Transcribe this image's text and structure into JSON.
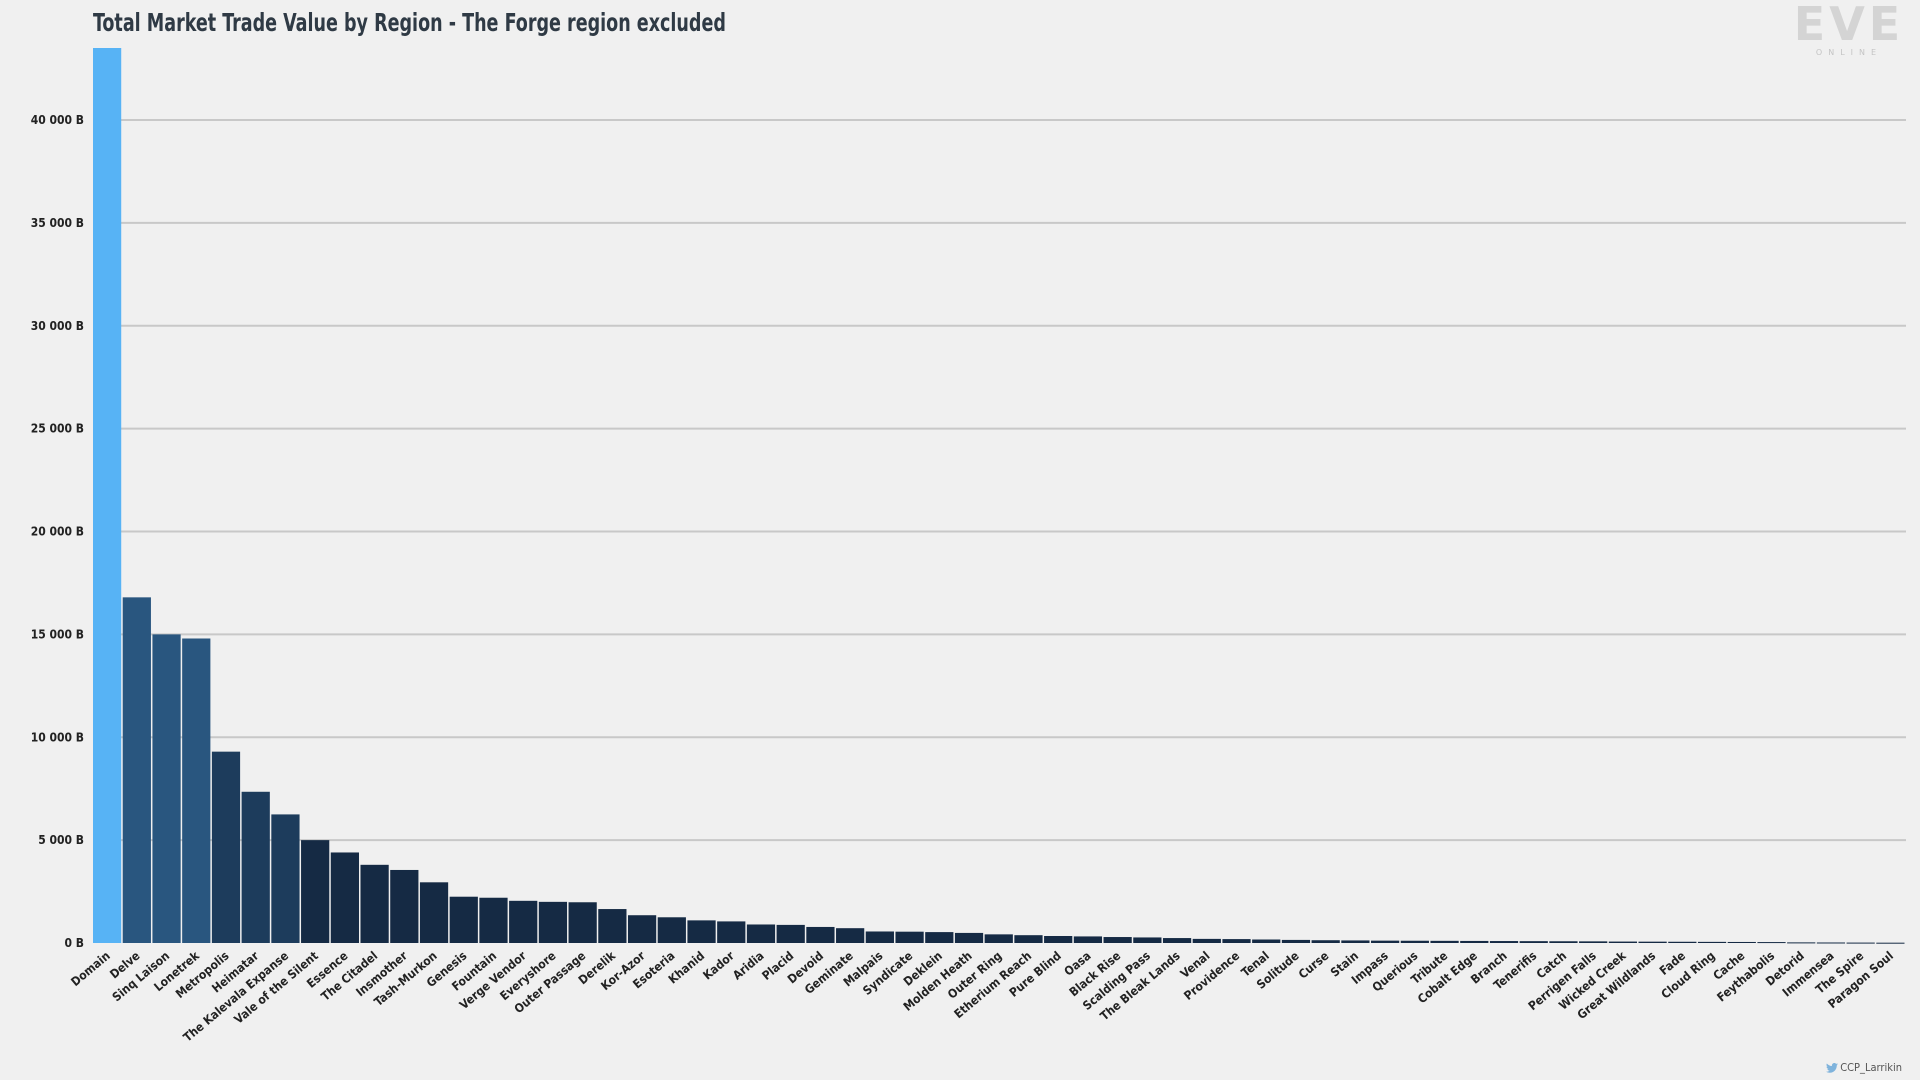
{
  "chart_data": {
    "type": "bar",
    "title": "Total Market Trade Value by Region - The Forge region excluded",
    "xlabel": "",
    "ylabel": "",
    "ylim": [
      0,
      43500
    ],
    "yticks": [
      0,
      5000,
      10000,
      15000,
      20000,
      25000,
      30000,
      35000,
      40000
    ],
    "ytick_labels": [
      "0 B",
      "5 000 B",
      "10 000 B",
      "15 000 B",
      "20 000 B",
      "25 000 B",
      "30 000 B",
      "35 000 B",
      "40 000 B"
    ],
    "grid": true,
    "categories": [
      "Domain",
      "Delve",
      "Sinq Laison",
      "Lonetrek",
      "Metropolis",
      "Heimatar",
      "The Kalevala Expanse",
      "Vale of the Silent",
      "Essence",
      "The Citadel",
      "Insmother",
      "Tash-Murkon",
      "Genesis",
      "Fountain",
      "Verge Vendor",
      "Everyshore",
      "Outer Passage",
      "Derelik",
      "Kor-Azor",
      "Esoteria",
      "Khanid",
      "Kador",
      "Aridia",
      "Placid",
      "Devoid",
      "Geminate",
      "Malpais",
      "Syndicate",
      "Deklein",
      "Molden Heath",
      "Outer Ring",
      "Etherium Reach",
      "Pure Blind",
      "Oasa",
      "Black Rise",
      "Scalding Pass",
      "The Bleak Lands",
      "Venal",
      "Providence",
      "Tenal",
      "Solitude",
      "Curse",
      "Stain",
      "Impass",
      "Querious",
      "Tribute",
      "Cobalt Edge",
      "Branch",
      "Tenerifis",
      "Catch",
      "Perrigen Falls",
      "Wicked Creek",
      "Great Wildlands",
      "Fade",
      "Cloud Ring",
      "Cache",
      "Feythabolis",
      "Detorid",
      "Immensea",
      "The Spire",
      "Paragon Soul"
    ],
    "values": [
      43500,
      16800,
      15000,
      14800,
      9300,
      7350,
      6250,
      5000,
      4400,
      3800,
      3550,
      2950,
      2250,
      2200,
      2050,
      2000,
      1980,
      1650,
      1350,
      1250,
      1100,
      1050,
      900,
      880,
      780,
      720,
      560,
      550,
      530,
      490,
      420,
      380,
      340,
      320,
      290,
      270,
      240,
      200,
      190,
      170,
      150,
      135,
      125,
      115,
      110,
      105,
      100,
      95,
      90,
      85,
      80,
      70,
      65,
      60,
      55,
      50,
      45,
      30,
      25,
      20,
      15
    ],
    "colors": {
      "highlight": "#57b3f5",
      "dark": "#152a44",
      "mid": "#1d3c5c",
      "light": "#29567f"
    }
  },
  "branding": {
    "logo_text": "EVE",
    "logo_sub": "ONLINE",
    "credit": "CCP_Larrikin"
  }
}
